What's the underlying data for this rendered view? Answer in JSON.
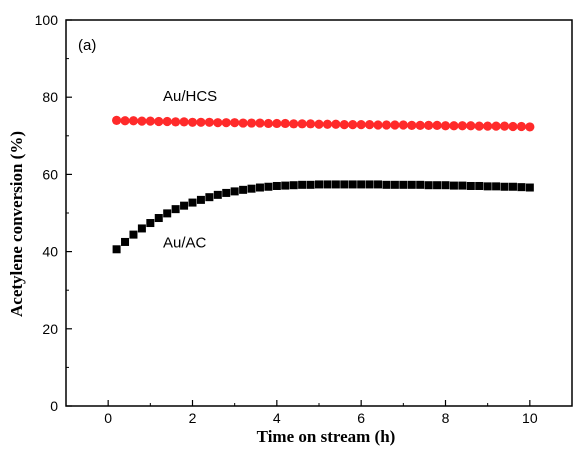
{
  "chart_data": {
    "type": "scatter",
    "panel_label": "(a)",
    "xlabel": "Time on stream (h)",
    "ylabel": "Acetylene conversion (%)",
    "xlim": [
      -1,
      11
    ],
    "ylim": [
      0,
      100
    ],
    "xticks": [
      0,
      2,
      4,
      6,
      8,
      10
    ],
    "yticks": [
      0,
      20,
      40,
      60,
      80,
      100
    ],
    "grid": false,
    "legend": "none",
    "series": [
      {
        "name": "Au/HCS",
        "marker": "circle",
        "color": "#ff2a2a",
        "x": [
          0.2,
          0.4,
          0.6,
          0.8,
          1.0,
          1.2,
          1.4,
          1.6,
          1.8,
          2.0,
          2.2,
          2.4,
          2.6,
          2.8,
          3.0,
          3.2,
          3.4,
          3.6,
          3.8,
          4.0,
          4.2,
          4.4,
          4.6,
          4.8,
          5.0,
          5.2,
          5.4,
          5.6,
          5.8,
          6.0,
          6.2,
          6.4,
          6.6,
          6.8,
          7.0,
          7.2,
          7.4,
          7.6,
          7.8,
          8.0,
          8.2,
          8.4,
          8.6,
          8.8,
          9.0,
          9.2,
          9.4,
          9.6,
          9.8,
          10.0
        ],
        "y": [
          74.0,
          73.9,
          73.9,
          73.8,
          73.8,
          73.7,
          73.7,
          73.6,
          73.6,
          73.5,
          73.5,
          73.5,
          73.4,
          73.4,
          73.4,
          73.3,
          73.3,
          73.3,
          73.2,
          73.2,
          73.2,
          73.1,
          73.1,
          73.1,
          73.0,
          73.0,
          73.0,
          72.9,
          72.9,
          72.9,
          72.9,
          72.8,
          72.8,
          72.8,
          72.8,
          72.7,
          72.7,
          72.7,
          72.7,
          72.6,
          72.6,
          72.6,
          72.6,
          72.5,
          72.5,
          72.5,
          72.5,
          72.4,
          72.4,
          72.3
        ]
      },
      {
        "name": "Au/AC",
        "marker": "square",
        "color": "#000000",
        "x": [
          0.2,
          0.4,
          0.6,
          0.8,
          1.0,
          1.2,
          1.4,
          1.6,
          1.8,
          2.0,
          2.2,
          2.4,
          2.6,
          2.8,
          3.0,
          3.2,
          3.4,
          3.6,
          3.8,
          4.0,
          4.2,
          4.4,
          4.6,
          4.8,
          5.0,
          5.2,
          5.4,
          5.6,
          5.8,
          6.0,
          6.2,
          6.4,
          6.6,
          6.8,
          7.0,
          7.2,
          7.4,
          7.6,
          7.8,
          8.0,
          8.2,
          8.4,
          8.6,
          8.8,
          9.0,
          9.2,
          9.4,
          9.6,
          9.8,
          10.0
        ],
        "y": [
          40.6,
          42.5,
          44.4,
          46.0,
          47.4,
          48.7,
          49.9,
          51.0,
          51.9,
          52.7,
          53.4,
          54.1,
          54.7,
          55.2,
          55.6,
          56.0,
          56.3,
          56.6,
          56.8,
          57.0,
          57.1,
          57.2,
          57.3,
          57.3,
          57.4,
          57.4,
          57.4,
          57.4,
          57.4,
          57.4,
          57.4,
          57.4,
          57.3,
          57.3,
          57.3,
          57.3,
          57.3,
          57.2,
          57.2,
          57.2,
          57.1,
          57.1,
          57.0,
          57.0,
          56.9,
          56.9,
          56.8,
          56.8,
          56.7,
          56.6
        ]
      }
    ],
    "annotations": [
      {
        "text": "Au/HCS",
        "x": 1.3,
        "y": 79
      },
      {
        "text": "Au/AC",
        "x": 1.3,
        "y": 41
      }
    ]
  }
}
